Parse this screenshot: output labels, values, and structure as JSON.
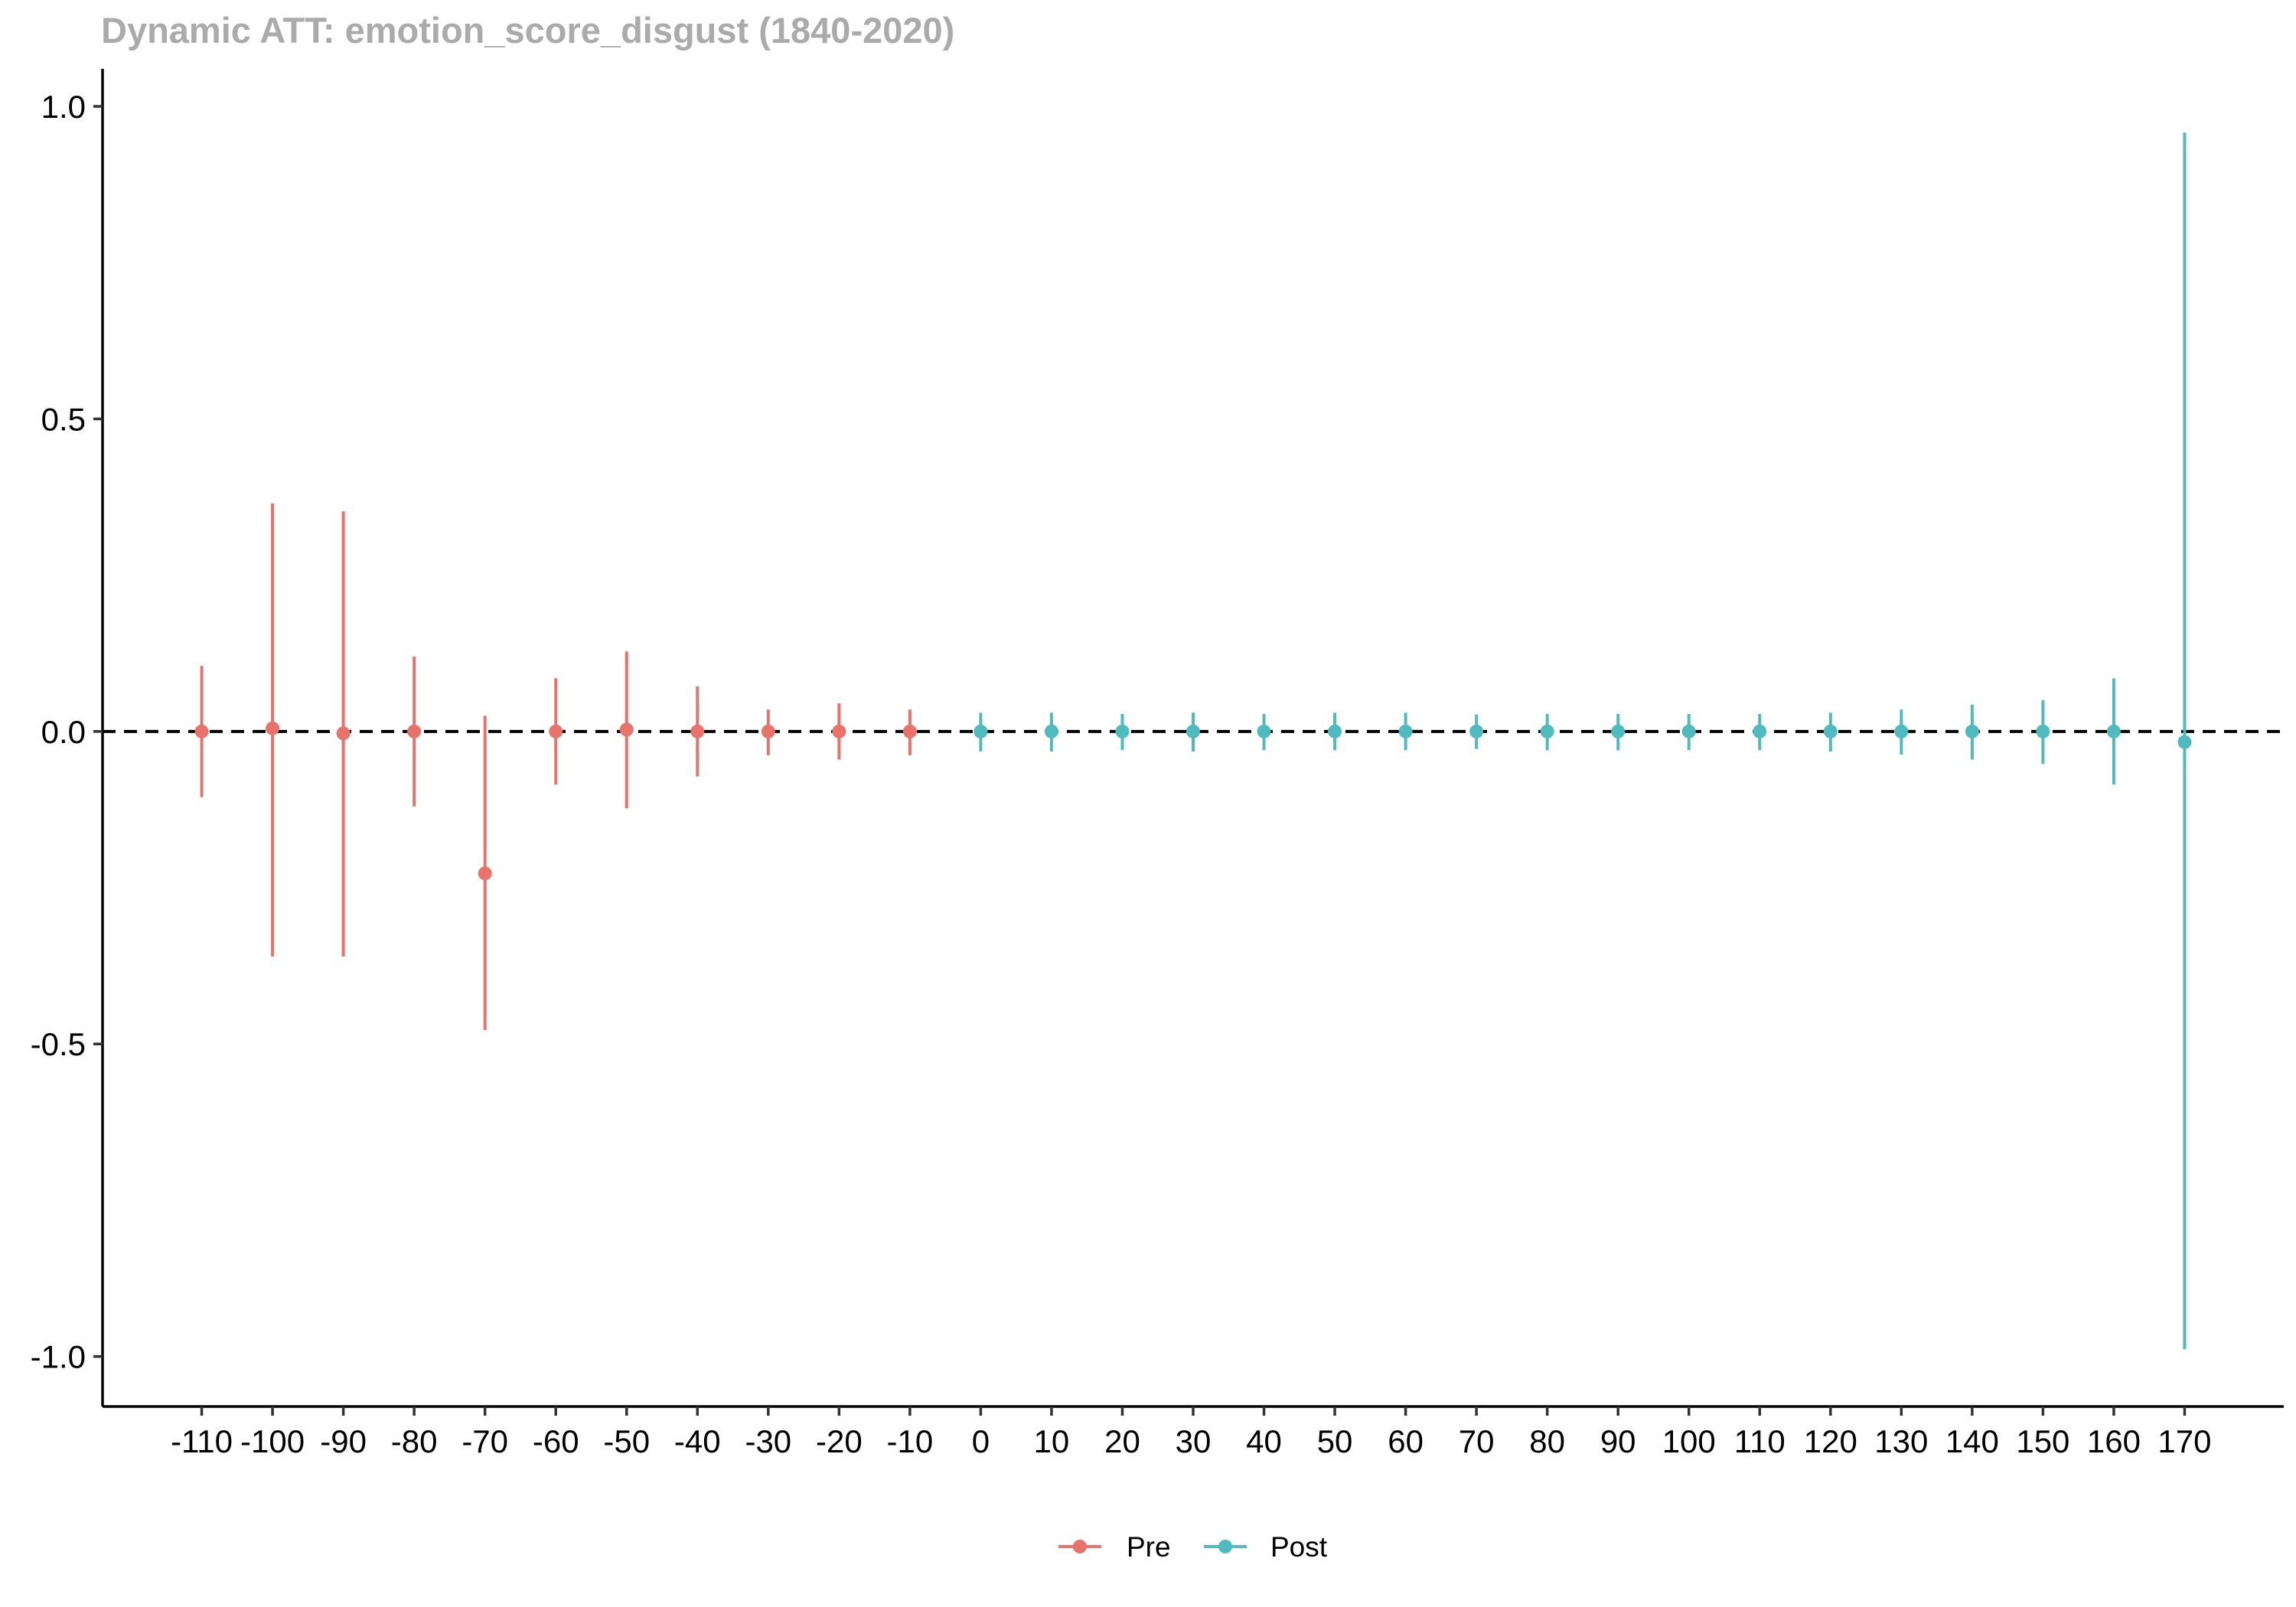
{
  "chart_data": {
    "type": "scatter",
    "title": "Dynamic ATT: emotion_score_disgust (1840-2020)",
    "xlabel": "",
    "ylabel": "",
    "ylim": [
      -1.08,
      1.06
    ],
    "xlim": [
      -124,
      184
    ],
    "y_ticks": [
      -1.0,
      -0.5,
      0.0,
      0.5,
      1.0
    ],
    "y_tick_labels": [
      "-1.0",
      "-0.5",
      "0.0",
      "0.5",
      "1.0"
    ],
    "x_ticks": [
      -110,
      -100,
      -90,
      -80,
      -70,
      -60,
      -50,
      -40,
      -30,
      -20,
      -10,
      0,
      10,
      20,
      30,
      40,
      50,
      60,
      70,
      80,
      90,
      100,
      110,
      120,
      130,
      140,
      150,
      160,
      170
    ],
    "x_tick_labels": [
      "-110",
      "-100",
      "-90",
      "-80",
      "-70",
      "-60",
      "-50",
      "-40",
      "-30",
      "-20",
      "-10",
      "0",
      "10",
      "20",
      "30",
      "40",
      "50",
      "60",
      "70",
      "80",
      "90",
      "100",
      "110",
      "120",
      "130",
      "140",
      "150",
      "160",
      "170"
    ],
    "reference_line": {
      "y": 0,
      "style": "dashed"
    },
    "grid": false,
    "legend_position": "bottom",
    "series": [
      {
        "name": "Pre",
        "color": "#E8736B",
        "points": [
          {
            "x": -110,
            "y": 0.0,
            "lo": -0.105,
            "hi": 0.105
          },
          {
            "x": -100,
            "y": 0.005,
            "lo": -0.36,
            "hi": 0.365
          },
          {
            "x": -90,
            "y": -0.003,
            "lo": -0.36,
            "hi": 0.352
          },
          {
            "x": -80,
            "y": 0.0,
            "lo": -0.12,
            "hi": 0.12
          },
          {
            "x": -70,
            "y": -0.227,
            "lo": -0.478,
            "hi": 0.025
          },
          {
            "x": -60,
            "y": 0.0,
            "lo": -0.085,
            "hi": 0.085
          },
          {
            "x": -50,
            "y": 0.003,
            "lo": -0.123,
            "hi": 0.128
          },
          {
            "x": -40,
            "y": 0.0,
            "lo": -0.072,
            "hi": 0.072
          },
          {
            "x": -30,
            "y": 0.0,
            "lo": -0.038,
            "hi": 0.035
          },
          {
            "x": -20,
            "y": 0.0,
            "lo": -0.045,
            "hi": 0.045
          },
          {
            "x": -10,
            "y": 0.0,
            "lo": -0.038,
            "hi": 0.035
          }
        ]
      },
      {
        "name": "Post",
        "color": "#4FBBBE",
        "points": [
          {
            "x": 0,
            "y": 0.0,
            "lo": -0.032,
            "hi": 0.03
          },
          {
            "x": 10,
            "y": 0.0,
            "lo": -0.032,
            "hi": 0.03
          },
          {
            "x": 20,
            "y": 0.0,
            "lo": -0.03,
            "hi": 0.028
          },
          {
            "x": 30,
            "y": 0.0,
            "lo": -0.032,
            "hi": 0.03
          },
          {
            "x": 40,
            "y": 0.0,
            "lo": -0.03,
            "hi": 0.028
          },
          {
            "x": 50,
            "y": 0.0,
            "lo": -0.03,
            "hi": 0.03
          },
          {
            "x": 60,
            "y": 0.0,
            "lo": -0.03,
            "hi": 0.03
          },
          {
            "x": 70,
            "y": 0.0,
            "lo": -0.028,
            "hi": 0.027
          },
          {
            "x": 80,
            "y": 0.0,
            "lo": -0.03,
            "hi": 0.028
          },
          {
            "x": 90,
            "y": 0.0,
            "lo": -0.03,
            "hi": 0.028
          },
          {
            "x": 100,
            "y": 0.0,
            "lo": -0.03,
            "hi": 0.028
          },
          {
            "x": 110,
            "y": 0.0,
            "lo": -0.03,
            "hi": 0.028
          },
          {
            "x": 120,
            "y": 0.0,
            "lo": -0.032,
            "hi": 0.03
          },
          {
            "x": 130,
            "y": 0.0,
            "lo": -0.037,
            "hi": 0.035
          },
          {
            "x": 140,
            "y": 0.0,
            "lo": -0.045,
            "hi": 0.043
          },
          {
            "x": 150,
            "y": 0.0,
            "lo": -0.052,
            "hi": 0.05
          },
          {
            "x": 160,
            "y": 0.0,
            "lo": -0.085,
            "hi": 0.085
          },
          {
            "x": 170,
            "y": -0.017,
            "lo": -0.988,
            "hi": 0.958
          }
        ]
      }
    ]
  }
}
